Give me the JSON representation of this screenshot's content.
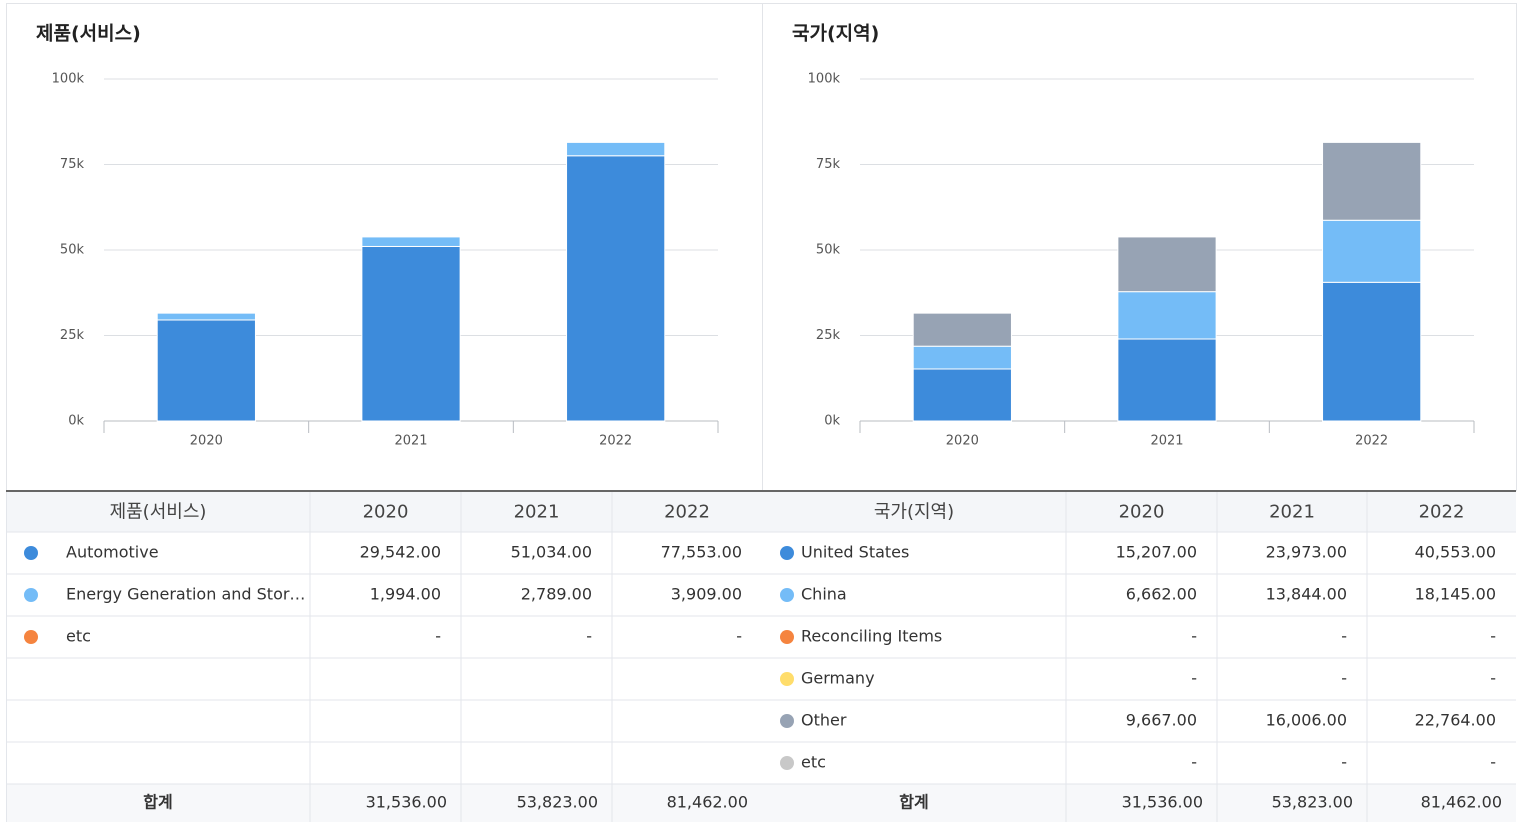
{
  "chart_data": [
    {
      "type": "bar",
      "stacked": true,
      "title": "제품(서비스)",
      "categories": [
        "2020",
        "2021",
        "2022"
      ],
      "series": [
        {
          "name": "Automotive",
          "color": "#3d8bdb",
          "values": [
            29542,
            51034,
            77553
          ]
        },
        {
          "name": "Energy Generation and Stor…",
          "color": "#74bcf7",
          "values": [
            1994,
            2789,
            3909
          ]
        }
      ],
      "ylim": [
        0,
        100000
      ],
      "yticks": [
        {
          "value": 0,
          "label": "0k"
        },
        {
          "value": 25000,
          "label": "25k"
        },
        {
          "value": 50000,
          "label": "50k"
        },
        {
          "value": 75000,
          "label": "75k"
        },
        {
          "value": 100000,
          "label": "100k"
        }
      ],
      "grid": true
    },
    {
      "type": "bar",
      "stacked": true,
      "title": "국가(지역)",
      "categories": [
        "2020",
        "2021",
        "2022"
      ],
      "series": [
        {
          "name": "United States",
          "color": "#3d8bdb",
          "values": [
            15207,
            23973,
            40553
          ]
        },
        {
          "name": "China",
          "color": "#74bcf7",
          "values": [
            6662,
            13844,
            18145
          ]
        },
        {
          "name": "Other",
          "color": "#97a3b4",
          "values": [
            9667,
            16006,
            22764
          ]
        }
      ],
      "ylim": [
        0,
        100000
      ],
      "yticks": [
        {
          "value": 0,
          "label": "0k"
        },
        {
          "value": 25000,
          "label": "25k"
        },
        {
          "value": 50000,
          "label": "50k"
        },
        {
          "value": 75000,
          "label": "75k"
        },
        {
          "value": 100000,
          "label": "100k"
        }
      ],
      "grid": true
    }
  ],
  "tables": [
    {
      "header": [
        "제품(서비스)",
        "2020",
        "2021",
        "2022"
      ],
      "rows": [
        {
          "name": "Automotive",
          "color": "#3d8bdb",
          "cells": [
            "29,542.00",
            "51,034.00",
            "77,553.00"
          ]
        },
        {
          "name": "Energy Generation and Stor…",
          "color": "#74bcf7",
          "cells": [
            "1,994.00",
            "2,789.00",
            "3,909.00"
          ]
        },
        {
          "name": "etc",
          "color": "#f5843f",
          "cells": [
            "-",
            "-",
            "-"
          ]
        }
      ],
      "total_label": "합계",
      "totals": [
        "31,536.00",
        "53,823.00",
        "81,462.00"
      ]
    },
    {
      "header": [
        "국가(지역)",
        "2020",
        "2021",
        "2022"
      ],
      "rows": [
        {
          "name": "United States",
          "color": "#3d8bdb",
          "cells": [
            "15,207.00",
            "23,973.00",
            "40,553.00"
          ]
        },
        {
          "name": "China",
          "color": "#74bcf7",
          "cells": [
            "6,662.00",
            "13,844.00",
            "18,145.00"
          ]
        },
        {
          "name": "Reconciling Items",
          "color": "#f5843f",
          "cells": [
            "-",
            "-",
            "-"
          ]
        },
        {
          "name": "Germany",
          "color": "#ffdd6b",
          "cells": [
            "-",
            "-",
            "-"
          ]
        },
        {
          "name": "Other",
          "color": "#97a3b4",
          "cells": [
            "9,667.00",
            "16,006.00",
            "22,764.00"
          ]
        },
        {
          "name": "etc",
          "color": "#c8c8c8",
          "cells": [
            "-",
            "-",
            "-"
          ]
        }
      ],
      "total_label": "합계",
      "totals": [
        "31,536.00",
        "53,823.00",
        "81,462.00"
      ]
    }
  ]
}
